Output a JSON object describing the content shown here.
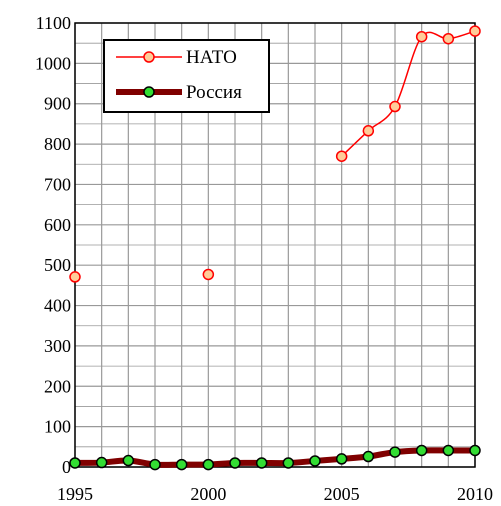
{
  "chart_data": {
    "type": "line",
    "title": "",
    "xlabel": "",
    "ylabel": "",
    "xlim": [
      1995,
      2010
    ],
    "ylim": [
      0,
      1100
    ],
    "grid": true,
    "legend_position": "top-left",
    "x_ticks": [
      "1995",
      "2000",
      "2005",
      "2010"
    ],
    "y_ticks": [
      "0",
      "100",
      "200",
      "300",
      "400",
      "500",
      "600",
      "700",
      "800",
      "900",
      "1000",
      "1100"
    ],
    "series": [
      {
        "name": "НАТО",
        "color": "#ff0000",
        "marker_fill": "#ffcc99",
        "points": [
          {
            "x": 1995,
            "y": 471
          },
          {
            "x": 2000,
            "y": 477
          },
          {
            "x": 2005,
            "y": 770
          },
          {
            "x": 2006,
            "y": 833
          },
          {
            "x": 2007,
            "y": 893
          },
          {
            "x": 2008,
            "y": 1066
          },
          {
            "x": 2009,
            "y": 1061
          },
          {
            "x": 2010,
            "y": 1080
          }
        ],
        "segments": [
          [
            1995
          ],
          [
            2000
          ],
          [
            2005,
            2006,
            2007,
            2008,
            2009,
            2010
          ]
        ]
      },
      {
        "name": "Россия",
        "color": "#800000",
        "marker_fill": "#33dd33",
        "points": [
          {
            "x": 1995,
            "y": 10
          },
          {
            "x": 1996,
            "y": 11
          },
          {
            "x": 1997,
            "y": 16
          },
          {
            "x": 1998,
            "y": 6
          },
          {
            "x": 1999,
            "y": 6
          },
          {
            "x": 2000,
            "y": 6
          },
          {
            "x": 2001,
            "y": 10
          },
          {
            "x": 2002,
            "y": 10
          },
          {
            "x": 2003,
            "y": 10
          },
          {
            "x": 2004,
            "y": 15
          },
          {
            "x": 2005,
            "y": 20
          },
          {
            "x": 2006,
            "y": 26
          },
          {
            "x": 2007,
            "y": 37
          },
          {
            "x": 2008,
            "y": 41
          },
          {
            "x": 2009,
            "y": 41
          },
          {
            "x": 2010,
            "y": 41
          }
        ],
        "segments": [
          [
            1995,
            1996,
            1997,
            1998,
            1999,
            2000,
            2001,
            2002,
            2003,
            2004,
            2005,
            2006,
            2007,
            2008,
            2009,
            2010
          ]
        ]
      }
    ]
  }
}
